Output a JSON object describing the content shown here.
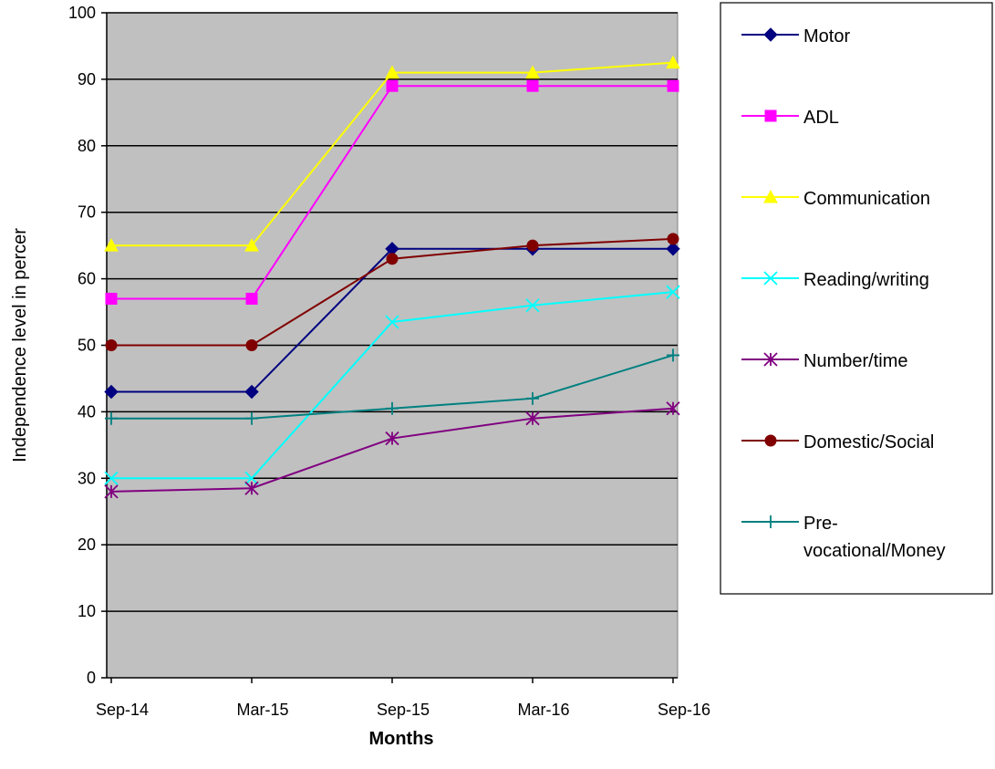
{
  "chart_data": {
    "type": "line",
    "xlabel": "Months",
    "ylabel": "Independence level in percer",
    "categories": [
      "Sep-14",
      "Mar-15",
      "Sep-15",
      "Mar-16",
      "Sep-16"
    ],
    "ylim": [
      0,
      100
    ],
    "yticks": [
      0,
      10,
      20,
      30,
      40,
      50,
      60,
      70,
      80,
      90,
      100
    ],
    "grid": true,
    "plot_background": "#c0c0c0",
    "legend_position": "right",
    "series": [
      {
        "name": "Motor",
        "color": "#000080",
        "marker": "diamond",
        "values": [
          43,
          43,
          64.5,
          64.5,
          64.5
        ]
      },
      {
        "name": "ADL",
        "color": "#ff00ff",
        "marker": "square",
        "values": [
          57,
          57,
          89,
          89,
          89
        ]
      },
      {
        "name": "Communication",
        "color": "#ffff00",
        "marker": "triangle",
        "values": [
          65,
          65,
          91,
          91,
          92.5
        ]
      },
      {
        "name": "Reading/writing",
        "color": "#00ffff",
        "marker": "x",
        "values": [
          30,
          30,
          53.5,
          56,
          58
        ]
      },
      {
        "name": "Number/time",
        "color": "#800080",
        "marker": "star",
        "values": [
          28,
          28.5,
          36,
          39,
          40.5
        ]
      },
      {
        "name": "Domestic/Social",
        "color": "#800000",
        "marker": "circle",
        "values": [
          50,
          50,
          63,
          65,
          66
        ]
      },
      {
        "name": "Pre-\nvocational/Money",
        "color": "#008080",
        "marker": "plus",
        "values": [
          39,
          39,
          40.5,
          42,
          48.5
        ]
      }
    ]
  }
}
